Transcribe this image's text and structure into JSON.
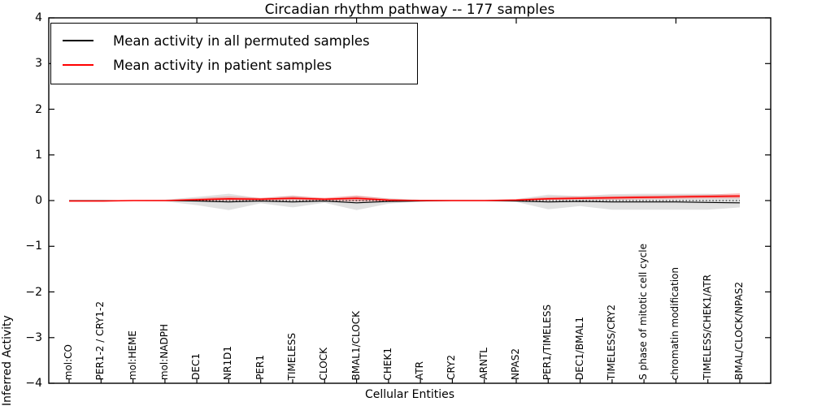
{
  "chart_data": {
    "type": "line",
    "title": "Circadian rhythm pathway -- 177 samples",
    "xlabel": "Cellular Entities",
    "ylabel": "Inferred Activity",
    "ylim": [
      -4,
      4
    ],
    "ytick_values": [
      -4,
      -3,
      -2,
      -1,
      0,
      1,
      2,
      3,
      4
    ],
    "grid": false,
    "legend_position": "upper left",
    "zero_line": {
      "style": "dotted",
      "color": "#000000",
      "y": 0
    },
    "top_tick_indices": [
      4,
      9,
      14,
      19
    ],
    "categories": [
      "mol:CO",
      "PER1-2 / CRY1-2",
      "mol:HEME",
      "mol:NADPH",
      "DEC1",
      "NR1D1",
      "PER1",
      "TIMELESS",
      "CLOCK",
      "BMAL1/CLOCK",
      "CHEK1",
      "ATR",
      "CRY2",
      "ARNTL",
      "NPAS2",
      "PER1/TIMELESS",
      "DEC1/BMAL1",
      "TIMELESS/CRY2",
      "S phase of mitotic cell cycle",
      "chromatin modification",
      "TIMELESS/CHEK1/ATR",
      "BMAL/CLOCK/NPAS2"
    ],
    "series": [
      {
        "name": "Mean activity in all permuted samples",
        "color": "#000000",
        "band_color": "rgba(120,120,120,0.22)",
        "values": [
          0,
          0,
          0,
          0,
          -0.01,
          -0.03,
          -0.01,
          -0.03,
          -0.01,
          -0.05,
          -0.02,
          -0.01,
          0,
          0,
          -0.01,
          -0.03,
          -0.02,
          -0.03,
          -0.03,
          -0.03,
          -0.04,
          -0.05
        ],
        "band_hi": [
          0.01,
          0.01,
          0.01,
          0.02,
          0.08,
          0.15,
          0.05,
          0.11,
          0.04,
          0.1,
          0.05,
          0.02,
          0.02,
          0.02,
          0.03,
          0.13,
          0.1,
          0.14,
          0.15,
          0.15,
          0.15,
          0.12
        ],
        "band_lo": [
          -0.01,
          -0.01,
          -0.01,
          -0.02,
          -0.1,
          -0.21,
          -0.06,
          -0.15,
          -0.05,
          -0.21,
          -0.07,
          -0.02,
          -0.02,
          -0.02,
          -0.03,
          -0.19,
          -0.12,
          -0.2,
          -0.2,
          -0.2,
          -0.2,
          -0.15
        ]
      },
      {
        "name": "Mean activity in patient samples",
        "color": "#ff0000",
        "band_color": "rgba(255,0,0,0.25)",
        "values": [
          -0.01,
          -0.01,
          0,
          0,
          0.02,
          0.04,
          0.03,
          0.05,
          0.03,
          0.05,
          0.01,
          0,
          0,
          0,
          0.01,
          0.04,
          0.05,
          0.06,
          0.07,
          0.08,
          0.09,
          0.1
        ],
        "band_hi": [
          0,
          0,
          0.01,
          0.01,
          0.05,
          0.09,
          0.06,
          0.1,
          0.06,
          0.11,
          0.04,
          0.01,
          0.01,
          0.01,
          0.03,
          0.08,
          0.09,
          0.1,
          0.11,
          0.12,
          0.13,
          0.16
        ],
        "band_lo": [
          -0.02,
          -0.02,
          -0.01,
          -0.01,
          -0.01,
          0,
          0,
          0.01,
          0,
          -0.02,
          -0.01,
          -0.01,
          -0.01,
          -0.01,
          -0.01,
          0.01,
          0.02,
          0.02,
          0.03,
          0.04,
          0.05,
          0.05
        ]
      }
    ]
  }
}
